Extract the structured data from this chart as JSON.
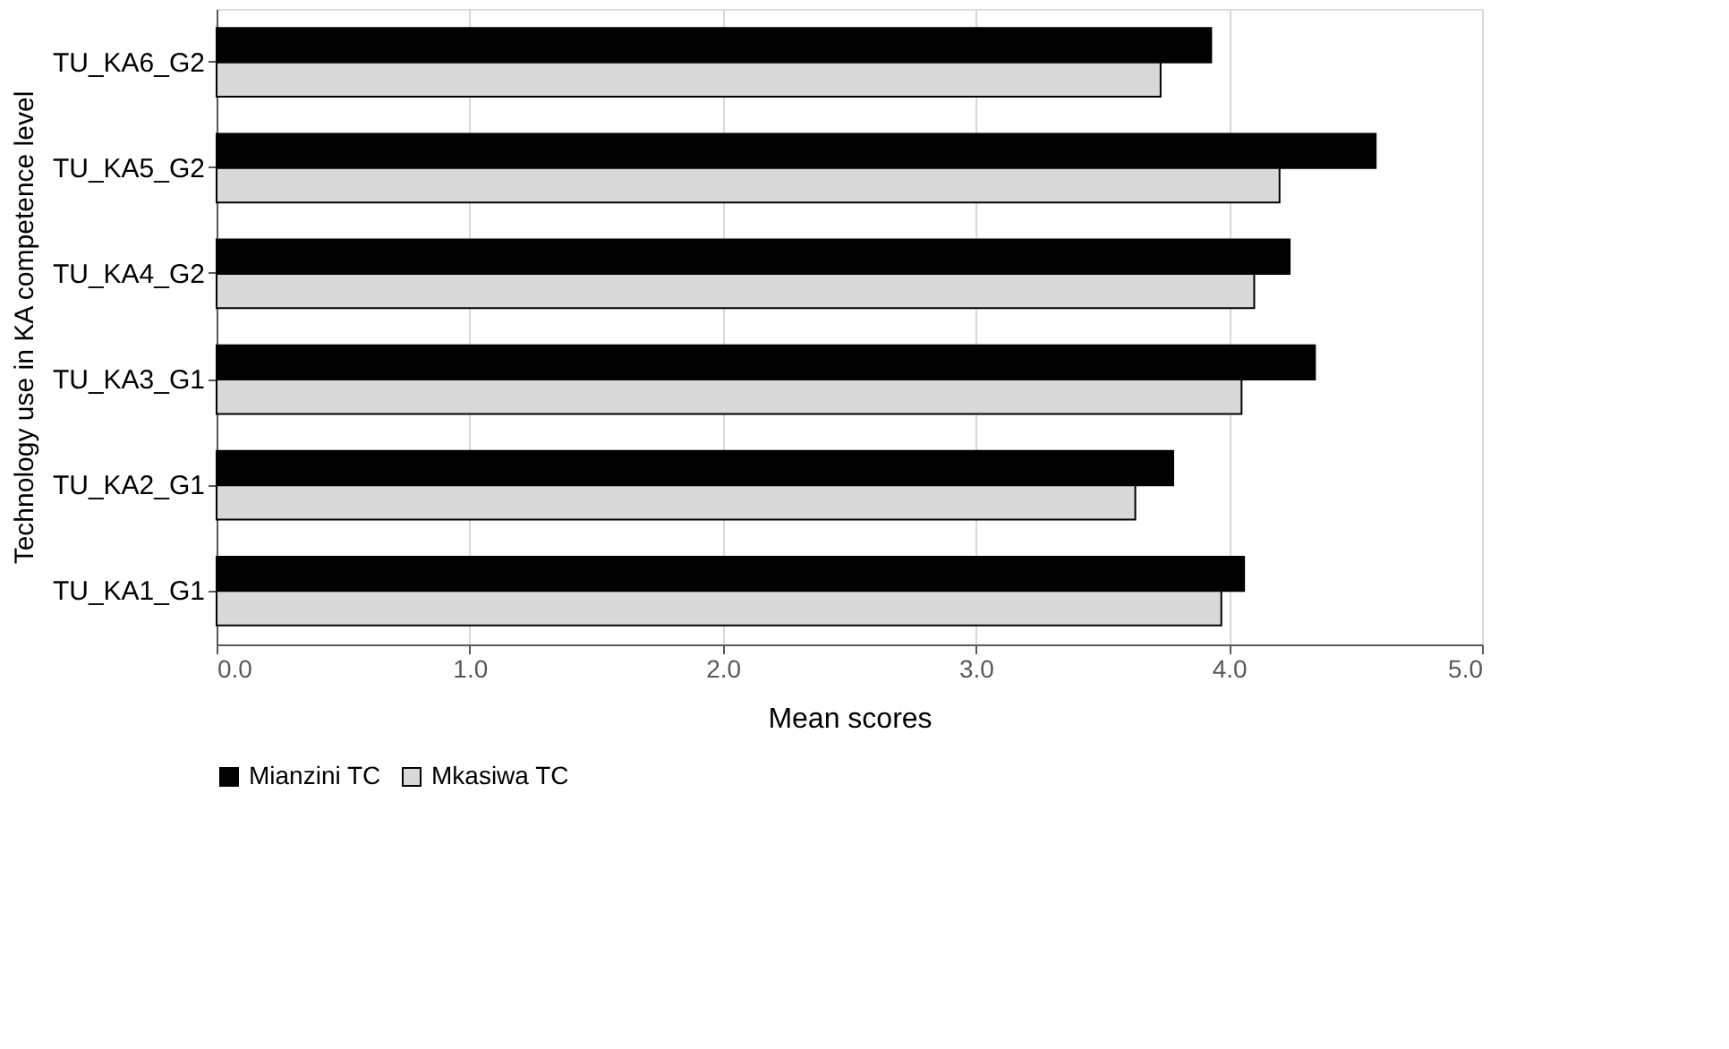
{
  "chart_data": {
    "type": "bar",
    "orientation": "horizontal",
    "xlabel": "Mean scores",
    "ylabel": "Technology use in KA competence level",
    "categories": [
      "TU_KA6_G2",
      "TU_KA5_G2",
      "TU_KA4_G2",
      "TU_KA3_G1",
      "TU_KA2_G1",
      "TU_KA1_G1"
    ],
    "series": [
      {
        "name": "Mianzini TC",
        "color": "#000000",
        "values": [
          3.93,
          4.58,
          4.24,
          4.34,
          3.78,
          4.06
        ]
      },
      {
        "name": "Mkasiwa TC",
        "color": "#d9d9d9",
        "values": [
          3.73,
          4.2,
          4.1,
          4.05,
          3.63,
          3.97
        ]
      }
    ],
    "xlim": [
      0,
      5
    ],
    "xticks": [
      {
        "value": 0,
        "label": "0.0"
      },
      {
        "value": 1,
        "label": "1.0"
      },
      {
        "value": 2,
        "label": "2.0"
      },
      {
        "value": 3,
        "label": "3.0"
      },
      {
        "value": 4,
        "label": "4.0"
      },
      {
        "value": 5,
        "label": "5.0"
      }
    ],
    "grid": "x",
    "legend": "bottom"
  }
}
